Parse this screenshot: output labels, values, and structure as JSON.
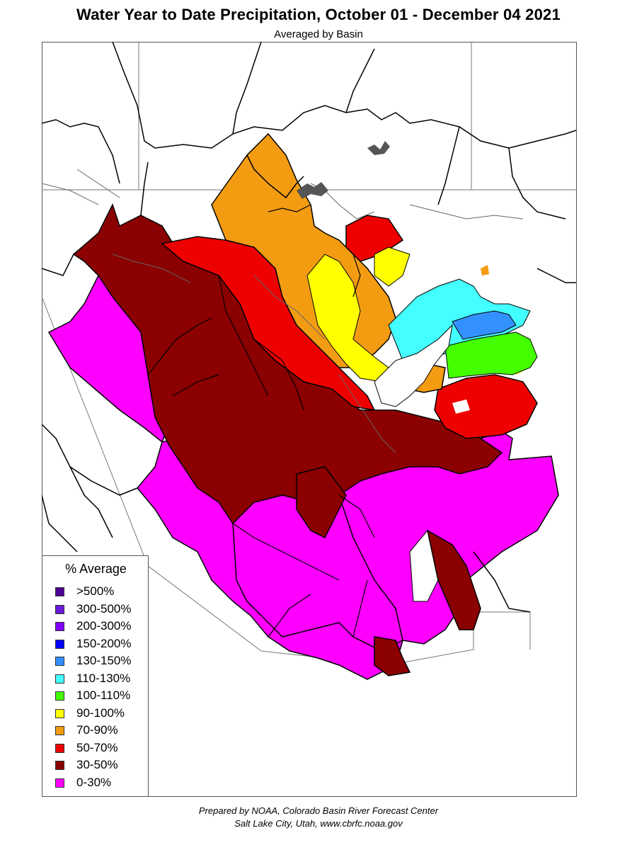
{
  "header": {
    "title": "Water Year to Date Precipitation, October 01  - December 04 2021",
    "subtitle": "Averaged by Basin"
  },
  "legend": {
    "title": "% Average",
    "items": [
      {
        "label": ">500%",
        "color": "#4b0096"
      },
      {
        "label": "300-500%",
        "color": "#6a1bd9"
      },
      {
        "label": "200-300%",
        "color": "#8000ff"
      },
      {
        "label": "150-200%",
        "color": "#0000ff"
      },
      {
        "label": "130-150%",
        "color": "#3391ff"
      },
      {
        "label": "110-130%",
        "color": "#44ffff"
      },
      {
        "label": "100-110%",
        "color": "#44ff00"
      },
      {
        "label": "90-100%",
        "color": "#ffff00"
      },
      {
        "label": "70-90%",
        "color": "#f39c12"
      },
      {
        "label": "50-70%",
        "color": "#ee0000"
      },
      {
        "label": "30-50%",
        "color": "#8b0000"
      },
      {
        "label": "0-30%",
        "color": "#ff00ff"
      }
    ]
  },
  "footer": {
    "line1": "Prepared by NOAA, Colorado Basin River Forecast Center",
    "line2": "Salt Lake City, Utah, www.cbrfc.noaa.gov"
  }
}
